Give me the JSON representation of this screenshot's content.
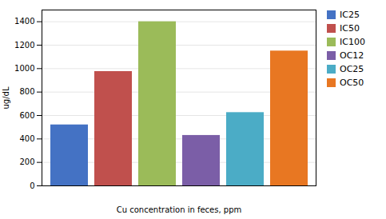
{
  "chart_data": {
    "type": "bar",
    "categories": [
      "IC25",
      "IC50",
      "IC100",
      "OC12",
      "OC25",
      "OC50"
    ],
    "values": [
      520,
      975,
      1400,
      430,
      625,
      1150
    ],
    "colors": [
      "#4472C4",
      "#C0504D",
      "#9BBB59",
      "#7B5EA7",
      "#4BACC6",
      "#E87722"
    ],
    "xlabel": "Cu concentration in feces, ppm",
    "ylabel": "ug/dL",
    "ylim": [
      0,
      1500
    ],
    "yticks": [
      0,
      200,
      400,
      600,
      800,
      1000,
      1200,
      1400
    ],
    "grid": true,
    "legend": "right",
    "tick_labels": "y"
  }
}
